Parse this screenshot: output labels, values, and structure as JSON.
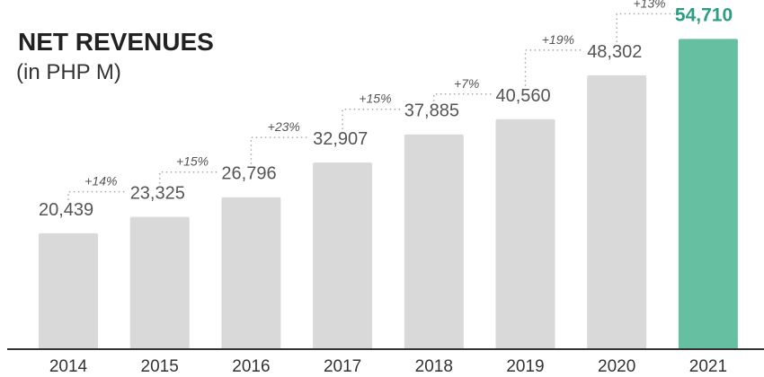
{
  "chart_data": {
    "type": "bar",
    "title": "NET REVENUES",
    "subtitle": "(in PHP M)",
    "categories": [
      "2014",
      "2015",
      "2016",
      "2017",
      "2018",
      "2019",
      "2020",
      "2021"
    ],
    "values": [
      20439,
      23325,
      26796,
      32907,
      37885,
      40560,
      48302,
      54710
    ],
    "value_labels": [
      "20,439",
      "23,325",
      "26,796",
      "32,907",
      "37,885",
      "40,560",
      "48,302",
      "54,710"
    ],
    "growth_labels": [
      "+14%",
      "+15%",
      "+23%",
      "+15%",
      "+7%",
      "+19%",
      "+13%"
    ],
    "ylim": [
      0,
      60000
    ],
    "grid": false,
    "colors": {
      "bar": "#d9d9d9",
      "bar_highlight": "#66bfa1",
      "highlight_text": "#2a9d82",
      "axis": "#333333",
      "connector": "#aaaaaa"
    }
  }
}
